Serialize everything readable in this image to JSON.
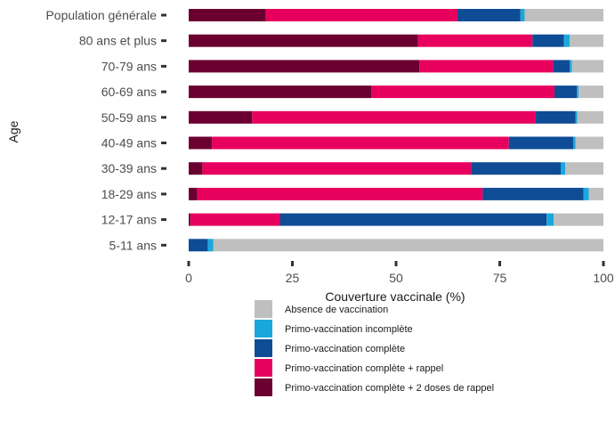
{
  "chart_data": {
    "type": "bar",
    "orientation": "horizontal",
    "stacked": true,
    "title": "",
    "xlabel": "Couverture vaccinale (%)",
    "ylabel": "Age",
    "xlim": [
      0,
      100
    ],
    "xticks": [
      0,
      25,
      50,
      75,
      100
    ],
    "grid": false,
    "legend_position": "bottom",
    "categories": [
      "Population générale",
      "80 ans et plus",
      "70-79 ans",
      "60-69 ans",
      "50-59 ans",
      "40-49 ans",
      "30-39 ans",
      "18-29 ans",
      "12-17 ans",
      "5-11 ans"
    ],
    "series": [
      {
        "name": "Primo-vaccination complète + 2 doses de rappel",
        "color": "#6b0030",
        "values": [
          18.6,
          55.3,
          55.6,
          44.0,
          15.3,
          5.6,
          3.3,
          2.1,
          0.4,
          0.0
        ]
      },
      {
        "name": "Primo-vaccination complète + rappel",
        "color": "#e8005f",
        "values": [
          46.2,
          27.6,
          32.3,
          44.2,
          68.4,
          71.6,
          64.8,
          68.8,
          21.6,
          0.0
        ]
      },
      {
        "name": "Primo-vaccination complète",
        "color": "#0e4c96",
        "values": [
          15.2,
          7.6,
          4.0,
          5.4,
          9.6,
          15.5,
          21.6,
          24.3,
          64.3,
          4.6
        ]
      },
      {
        "name": "Primo-vaccination incomplète",
        "color": "#1aa8dc",
        "values": [
          1.0,
          1.4,
          0.5,
          0.4,
          0.4,
          0.6,
          1.1,
          1.3,
          1.7,
          1.3
        ]
      },
      {
        "name": "Absence de vaccination",
        "color": "#bfbfbf",
        "values": [
          19.0,
          8.1,
          7.6,
          6.0,
          6.3,
          6.7,
          9.2,
          3.5,
          12.0,
          94.1
        ]
      }
    ],
    "legend_order": [
      "Absence de vaccination",
      "Primo-vaccination incomplète",
      "Primo-vaccination complète",
      "Primo-vaccination complète + rappel",
      "Primo-vaccination complète + 2 doses de rappel"
    ]
  }
}
